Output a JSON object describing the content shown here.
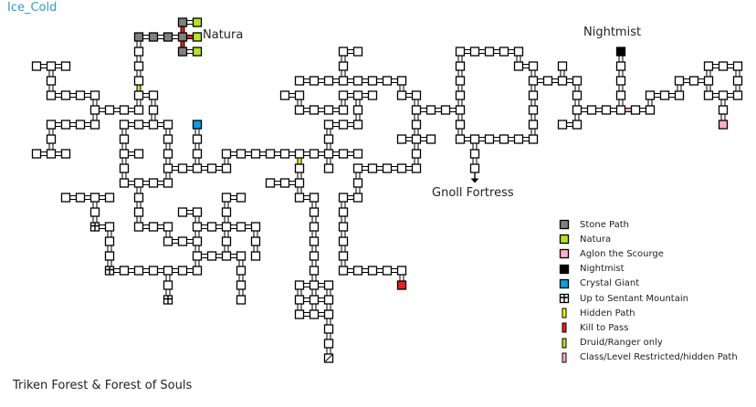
{
  "title": "Ice_Cold",
  "area_name": "Triken Forest & Forest of Souls",
  "labels": {
    "natura": "Natura",
    "nightmist": "Nightmist",
    "gnoll_fortress": "Gnoll Fortress"
  },
  "colors": {
    "stone_path": "#808080",
    "natura": "#b5e61d",
    "aglon": "#ffaec9",
    "nightmist": "#000000",
    "crystal_giant": "#00a2e8",
    "hidden_path": "#fff200",
    "kill_to_pass": "#ed1c24",
    "druid_ranger": "#b5e61d",
    "class_restricted": "#ffaec9",
    "red_room": "#ed1c24",
    "title": "#2e9bd6"
  },
  "legend": [
    {
      "label": "Stone Path",
      "icon": "square",
      "color": "#808080"
    },
    {
      "label": "Natura",
      "icon": "square",
      "color": "#b5e61d"
    },
    {
      "label": "Aglon the Scourge",
      "icon": "square",
      "color": "#ffaec9"
    },
    {
      "label": "Nightmist",
      "icon": "square",
      "color": "#000000"
    },
    {
      "label": "Crystal Giant",
      "icon": "square",
      "color": "#00a2e8"
    },
    {
      "label": "Up to Sentant Mountain",
      "icon": "up-exit",
      "color": "#000000"
    },
    {
      "label": "Hidden Path",
      "icon": "path",
      "color": "#fff200"
    },
    {
      "label": "Kill to Pass",
      "icon": "path",
      "color": "#ed1c24"
    },
    {
      "label": "Druid/Ranger only",
      "icon": "path",
      "color": "#b5e61d"
    },
    {
      "label": "Class/Level Restricted/hidden Path",
      "icon": "path",
      "color": "#ffaec9"
    }
  ]
}
